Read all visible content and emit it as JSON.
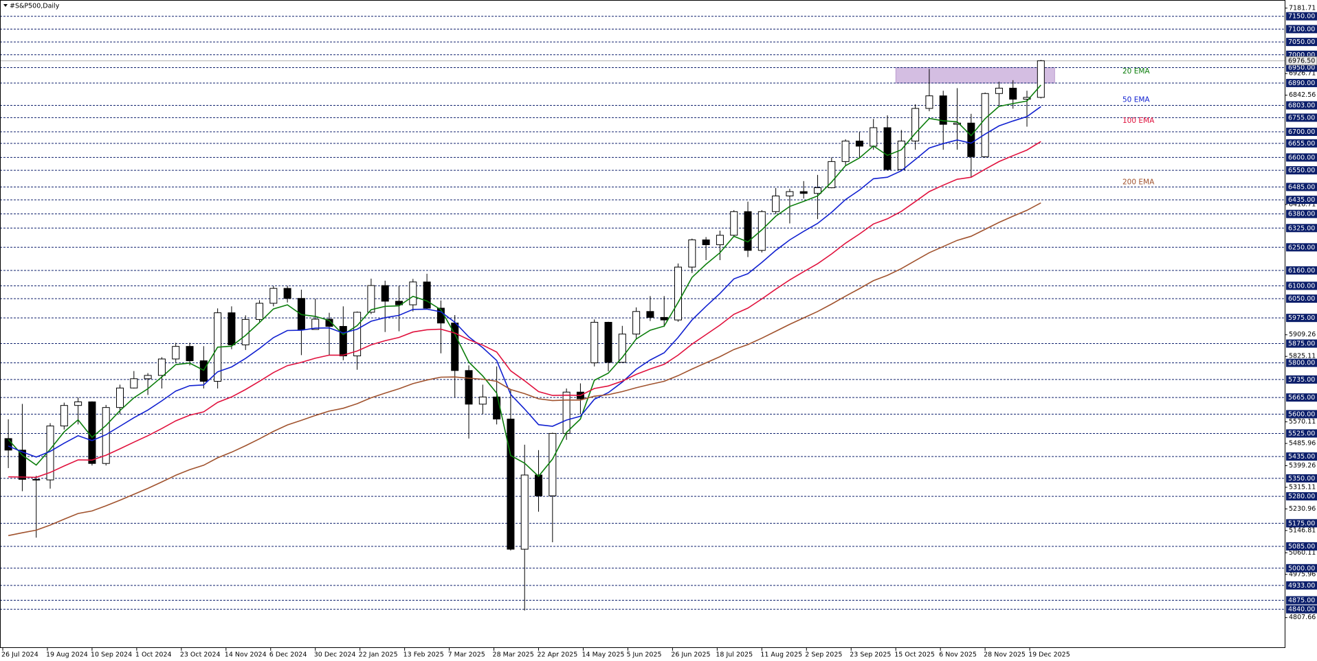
{
  "chart_data": {
    "type": "candlestick",
    "title": "#S&P500,Daily",
    "ylim": [
      4700,
      7200
    ],
    "xticks": [
      "26 Jul 2024",
      "19 Aug 2024",
      "10 Sep 2024",
      "1 Oct 2024",
      "23 Oct 2024",
      "14 Nov 2024",
      "6 Dec 2024",
      "30 Dec 2024",
      "22 Jan 2025",
      "13 Feb 2025",
      "7 Mar 2025",
      "28 Mar 2025",
      "22 Apr 2025",
      "14 May 2025",
      "5 Jun 2025",
      "26 Jun 2025",
      "18 Jul 2025",
      "11 Aug 2025",
      "2 Sep 2025",
      "23 Sep 2025",
      "15 Oct 2025",
      "6 Nov 2025",
      "28 Nov 2025",
      "19 Dec 2025"
    ],
    "yticks": [
      7181.71,
      6926.71,
      6842.56,
      6416.71,
      5909.26,
      5825.11,
      5570.11,
      5485.96,
      5399.26,
      5315.11,
      5230.96,
      5146.81,
      5060.11,
      4975.96,
      4807.66
    ],
    "levels": [
      {
        "value": 7150,
        "label": "7150.00"
      },
      {
        "value": 7100,
        "label": "7100.00"
      },
      {
        "value": 7050,
        "label": "7050.00"
      },
      {
        "value": 7000,
        "label": "7000.00"
      },
      {
        "value": 6950,
        "label": "6950.00"
      },
      {
        "value": 6890,
        "label": "6890.00"
      },
      {
        "value": 6803,
        "label": "6803.00"
      },
      {
        "value": 6755,
        "label": "6755.00"
      },
      {
        "value": 6700,
        "label": "6700.00"
      },
      {
        "value": 6655,
        "label": "6655.00"
      },
      {
        "value": 6600,
        "label": "6600.00"
      },
      {
        "value": 6550,
        "label": "6550.00"
      },
      {
        "value": 6485,
        "label": "6485.00"
      },
      {
        "value": 6435,
        "label": "6435.00"
      },
      {
        "value": 6380,
        "label": "6380.00"
      },
      {
        "value": 6325,
        "label": "6325.00"
      },
      {
        "value": 6250,
        "label": "6250.00"
      },
      {
        "value": 6160,
        "label": "6160.00"
      },
      {
        "value": 6100,
        "label": "6100.00"
      },
      {
        "value": 6050,
        "label": "6050.00"
      },
      {
        "value": 5975,
        "label": "5975.00"
      },
      {
        "value": 5875,
        "label": "5875.00"
      },
      {
        "value": 5800,
        "label": "5800.00"
      },
      {
        "value": 5735,
        "label": "5735.00"
      },
      {
        "value": 5665,
        "label": "5665.00"
      },
      {
        "value": 5600,
        "label": "5600.00"
      },
      {
        "value": 5525,
        "label": "5525.00"
      },
      {
        "value": 5435,
        "label": "5435.00"
      },
      {
        "value": 5350,
        "label": "5350.00"
      },
      {
        "value": 5280,
        "label": "5280.00"
      },
      {
        "value": 5175,
        "label": "5175.00"
      },
      {
        "value": 5085,
        "label": "5085.00"
      },
      {
        "value": 5000,
        "label": "5000.00"
      },
      {
        "value": 4933,
        "label": "4933.00"
      },
      {
        "value": 4875,
        "label": "4875.00"
      },
      {
        "value": 4840,
        "label": "4840.00"
      }
    ],
    "level_color": "#0c1f6b",
    "last_price": {
      "value": 6976.5,
      "label": "6976.50"
    },
    "zone": {
      "from": 6890,
      "to": 6950,
      "color": "#cdb3dd"
    },
    "candles": [
      [
        5505,
        5580,
        5390,
        5460
      ],
      [
        5460,
        5640,
        5300,
        5346
      ],
      [
        5346,
        5360,
        5119,
        5344
      ],
      [
        5344,
        5565,
        5310,
        5554
      ],
      [
        5554,
        5645,
        5540,
        5634
      ],
      [
        5634,
        5665,
        5560,
        5648
      ],
      [
        5648,
        5650,
        5400,
        5408
      ],
      [
        5408,
        5636,
        5400,
        5626
      ],
      [
        5626,
        5715,
        5600,
        5702
      ],
      [
        5702,
        5768,
        5700,
        5738
      ],
      [
        5738,
        5760,
        5675,
        5751
      ],
      [
        5751,
        5822,
        5700,
        5815
      ],
      [
        5815,
        5878,
        5800,
        5864
      ],
      [
        5864,
        5878,
        5790,
        5808
      ],
      [
        5808,
        5865,
        5700,
        5728
      ],
      [
        5728,
        6012,
        5700,
        5995
      ],
      [
        5995,
        6020,
        5853,
        5870
      ],
      [
        5870,
        5985,
        5850,
        5969
      ],
      [
        5969,
        6044,
        5960,
        6032
      ],
      [
        6032,
        6099,
        6020,
        6090
      ],
      [
        6090,
        6100,
        6035,
        6051
      ],
      [
        6051,
        6085,
        5830,
        5930
      ],
      [
        5930,
        6050,
        5930,
        5970
      ],
      [
        5970,
        5995,
        5830,
        5942
      ],
      [
        5942,
        6020,
        5810,
        5827
      ],
      [
        5827,
        6000,
        5773,
        5997
      ],
      [
        5997,
        6128,
        5990,
        6101
      ],
      [
        6101,
        6120,
        5920,
        6040
      ],
      [
        6040,
        6100,
        5923,
        6026
      ],
      [
        6026,
        6127,
        6000,
        6115
      ],
      [
        6115,
        6147,
        6010,
        6013
      ],
      [
        6013,
        6043,
        5837,
        5955
      ],
      [
        5955,
        5986,
        5666,
        5770
      ],
      [
        5770,
        5790,
        5505,
        5639
      ],
      [
        5639,
        5715,
        5600,
        5667
      ],
      [
        5667,
        5786,
        5560,
        5581
      ],
      [
        5581,
        5695,
        5069,
        5074
      ],
      [
        5074,
        5481,
        4835,
        5363
      ],
      [
        5363,
        5460,
        5220,
        5282
      ],
      [
        5282,
        5528,
        5101,
        5525
      ],
      [
        5525,
        5700,
        5500,
        5686
      ],
      [
        5686,
        5720,
        5600,
        5660
      ],
      [
        5800,
        5969,
        5786,
        5958
      ],
      [
        5958,
        5960,
        5767,
        5802
      ],
      [
        5802,
        5944,
        5800,
        5912
      ],
      [
        5912,
        6016,
        5890,
        6000
      ],
      [
        6000,
        6060,
        5963,
        5977
      ],
      [
        5977,
        6060,
        5940,
        5967
      ],
      [
        5967,
        6187,
        5960,
        6173
      ],
      [
        6173,
        6284,
        6150,
        6279
      ],
      [
        6279,
        6290,
        6200,
        6260
      ],
      [
        6260,
        6315,
        6200,
        6297
      ],
      [
        6297,
        6395,
        6290,
        6389
      ],
      [
        6389,
        6428,
        6212,
        6238
      ],
      [
        6238,
        6395,
        6230,
        6389
      ],
      [
        6389,
        6481,
        6380,
        6450
      ],
      [
        6450,
        6478,
        6343,
        6467
      ],
      [
        6467,
        6508,
        6440,
        6460
      ],
      [
        6460,
        6532,
        6360,
        6482
      ],
      [
        6482,
        6600,
        6480,
        6584
      ],
      [
        6584,
        6671,
        6570,
        6664
      ],
      [
        6664,
        6699,
        6600,
        6644
      ],
      [
        6644,
        6750,
        6630,
        6716
      ],
      [
        6716,
        6764,
        6550,
        6553
      ],
      [
        6553,
        6707,
        6550,
        6664
      ],
      [
        6664,
        6807,
        6630,
        6791
      ],
      [
        6791,
        6945,
        6780,
        6840
      ],
      [
        6840,
        6860,
        6630,
        6729
      ],
      [
        6729,
        6870,
        6630,
        6734
      ],
      [
        6734,
        6770,
        6521,
        6603
      ],
      [
        6603,
        6853,
        6600,
        6849
      ],
      [
        6849,
        6895,
        6800,
        6870
      ],
      [
        6870,
        6901,
        6790,
        6827
      ],
      [
        6827,
        6860,
        6720,
        6834
      ],
      [
        6834,
        6980,
        6830,
        6976.5
      ]
    ],
    "series": [
      {
        "name": "20 EMA",
        "color": "#0a7d0a",
        "values": [
          5502,
          5440,
          5402,
          5463,
          5531,
          5578,
          5510,
          5556,
          5614,
          5664,
          5699,
          5745,
          5793,
          5799,
          5771,
          5861,
          5865,
          5907,
          5957,
          6010,
          6026,
          5988,
          5981,
          5965,
          5910,
          5945,
          6007,
          6020,
          6022,
          6059,
          6041,
          6007,
          5912,
          5803,
          5749,
          5682,
          5439,
          5409,
          5358,
          5425,
          5529,
          5581,
          5732,
          5760,
          5821,
          5893,
          5927,
          5943,
          6035,
          6133,
          6184,
          6229,
          6293,
          6271,
          6318,
          6371,
          6409,
          6429,
          6450,
          6504,
          6568,
          6598,
          6645,
          6608,
          6630,
          6694,
          6752,
          6743,
          6739,
          6685,
          6751,
          6799,
          6810,
          6820,
          6882
        ]
      },
      {
        "name": "50 EMA",
        "color": "#1020d0",
        "values": [
          5476,
          5453,
          5433,
          5455,
          5487,
          5516,
          5497,
          5520,
          5553,
          5586,
          5616,
          5652,
          5690,
          5711,
          5714,
          5765,
          5784,
          5817,
          5856,
          5898,
          5926,
          5927,
          5935,
          5936,
          5916,
          5931,
          5962,
          5976,
          5985,
          6008,
          6009,
          5999,
          5958,
          5901,
          5859,
          5809,
          5677,
          5620,
          5559,
          5553,
          5577,
          5592,
          5658,
          5684,
          5725,
          5775,
          5811,
          5839,
          5899,
          5967,
          6020,
          6070,
          6127,
          6147,
          6191,
          6238,
          6279,
          6312,
          6343,
          6386,
          6436,
          6473,
          6517,
          6523,
          6548,
          6592,
          6637,
          6654,
          6668,
          6656,
          6691,
          6723,
          6742,
          6759,
          6798
        ]
      },
      {
        "name": "100 EMA",
        "color": "#e0103c",
        "values": [
          5356,
          5355,
          5354,
          5373,
          5398,
          5422,
          5421,
          5440,
          5465,
          5491,
          5516,
          5544,
          5574,
          5596,
          5609,
          5646,
          5667,
          5696,
          5728,
          5762,
          5789,
          5802,
          5818,
          5830,
          5830,
          5846,
          5870,
          5886,
          5899,
          5920,
          5929,
          5931,
          5916,
          5890,
          5869,
          5842,
          5769,
          5730,
          5688,
          5673,
          5674,
          5673,
          5700,
          5710,
          5729,
          5755,
          5776,
          5794,
          5830,
          5873,
          5910,
          5947,
          5989,
          6013,
          6049,
          6087,
          6123,
          6155,
          6186,
          6224,
          6266,
          6302,
          6341,
          6361,
          6390,
          6428,
          6467,
          6492,
          6515,
          6523,
          6554,
          6584,
          6607,
          6629,
          6662
        ]
      },
      {
        "name": "200 EMA",
        "color": "#a0522d",
        "values": [
          5127,
          5138,
          5148,
          5168,
          5191,
          5213,
          5223,
          5243,
          5265,
          5288,
          5311,
          5336,
          5362,
          5384,
          5401,
          5430,
          5452,
          5477,
          5504,
          5533,
          5558,
          5576,
          5595,
          5612,
          5623,
          5641,
          5664,
          5682,
          5699,
          5719,
          5733,
          5744,
          5745,
          5740,
          5736,
          5728,
          5696,
          5680,
          5660,
          5653,
          5655,
          5655,
          5670,
          5676,
          5688,
          5703,
          5716,
          5728,
          5750,
          5776,
          5800,
          5824,
          5852,
          5871,
          5896,
          5923,
          5950,
          5975,
          6000,
          6029,
          6060,
          6089,
          6120,
          6141,
          6167,
          6198,
          6229,
          6253,
          6277,
          6293,
          6320,
          6347,
          6371,
          6394,
          6423
        ]
      }
    ]
  }
}
